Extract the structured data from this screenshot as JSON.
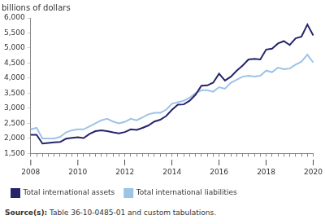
{
  "chart_data": {
    "type": "line",
    "ylabel": "billions of dollars",
    "categories": [
      "I\n2008",
      null,
      null,
      null,
      null,
      null,
      null,
      null,
      "I\n2010",
      null,
      null,
      null,
      null,
      null,
      null,
      null,
      "I\n2012",
      null,
      null,
      null,
      null,
      null,
      null,
      null,
      "I\n2014",
      null,
      null,
      null,
      null,
      null,
      null,
      null,
      "I\n2016",
      null,
      null,
      null,
      null,
      null,
      null,
      null,
      "I\n2018",
      null,
      null,
      null,
      null,
      null,
      null,
      null,
      "I\n2020"
    ],
    "series": [
      {
        "name": "Total international assets",
        "color": "#26246b",
        "values": [
          2120,
          2120,
          1830,
          1850,
          1870,
          1880,
          1990,
          2020,
          2040,
          2010,
          2150,
          2240,
          2270,
          2240,
          2200,
          2170,
          2210,
          2300,
          2280,
          2350,
          2430,
          2560,
          2620,
          2740,
          2950,
          3120,
          3130,
          3250,
          3450,
          3750,
          3760,
          3850,
          4150,
          3920,
          4050,
          4250,
          4420,
          4620,
          4640,
          4620,
          4950,
          4980,
          5150,
          5230,
          5100,
          5320,
          5380,
          5780,
          5420
        ]
      },
      {
        "name": "Total international liabilities",
        "color": "#9dc3e6",
        "values": [
          2300,
          2350,
          2000,
          2000,
          2000,
          2050,
          2200,
          2270,
          2300,
          2300,
          2400,
          2500,
          2600,
          2650,
          2560,
          2500,
          2550,
          2650,
          2600,
          2700,
          2800,
          2850,
          2850,
          2950,
          3150,
          3200,
          3250,
          3350,
          3500,
          3600,
          3600,
          3550,
          3700,
          3650,
          3850,
          3950,
          4050,
          4080,
          4050,
          4080,
          4250,
          4200,
          4350,
          4300,
          4320,
          4450,
          4550,
          4780,
          4520
        ]
      }
    ],
    "ylim": [
      1500,
      6000
    ],
    "yticks": [
      {
        "value": 1500,
        "label": "1,500"
      },
      {
        "value": 2000,
        "label": "2,000"
      },
      {
        "value": 2500,
        "label": "2,500"
      },
      {
        "value": 3000,
        "label": "3,000"
      },
      {
        "value": 3500,
        "label": "3,500"
      },
      {
        "value": 4000,
        "label": "4,000"
      },
      {
        "value": 4500,
        "label": "4,500"
      },
      {
        "value": 5000,
        "label": "5,000"
      },
      {
        "value": 5500,
        "label": "5,500"
      },
      {
        "value": 6000,
        "label": "6,000"
      }
    ],
    "grid": false,
    "legend": "bottom",
    "source_label": "Source(s):",
    "source": "Table 36-10-0485-01 and custom tabulations."
  }
}
